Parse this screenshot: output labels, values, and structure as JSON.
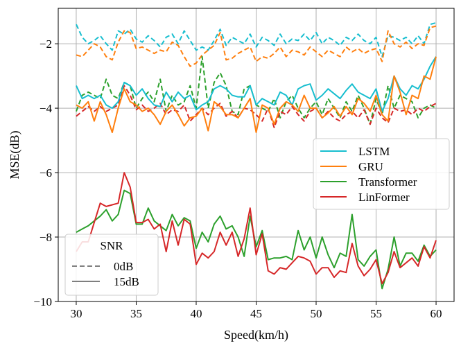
{
  "chart_data": {
    "type": "line",
    "title": "",
    "xlabel": "Speed(km/h)",
    "ylabel": "MSE(dB)",
    "xlim": [
      28.5,
      61.5
    ],
    "ylim": [
      -10,
      -0.9
    ],
    "xticks": [
      30,
      35,
      40,
      45,
      50,
      55,
      60
    ],
    "yticks": [
      -10,
      -8,
      -6,
      -4,
      -2
    ],
    "xtick_labels": [
      "30",
      "35",
      "40",
      "45",
      "50",
      "55",
      "60"
    ],
    "ytick_labels": [
      "−10",
      "−8",
      "−6",
      "−4",
      "−2"
    ],
    "grid": true,
    "x": [
      30,
      30.5,
      31,
      31.5,
      32,
      32.5,
      33,
      33.5,
      34,
      34.5,
      35,
      35.5,
      36,
      36.5,
      37,
      37.5,
      38,
      38.5,
      39,
      39.5,
      40,
      40.5,
      41,
      41.5,
      42,
      42.5,
      43,
      43.5,
      44,
      44.5,
      45,
      45.5,
      46,
      46.5,
      47,
      47.5,
      48,
      48.5,
      49,
      49.5,
      50,
      50.5,
      51,
      51.5,
      52,
      52.5,
      53,
      53.5,
      54,
      54.5,
      55,
      55.5,
      56,
      56.5,
      57,
      57.5,
      58,
      58.5,
      59,
      59.5,
      60
    ],
    "series": [
      {
        "name": "LSTM",
        "snr": "0dB",
        "style": "dashed",
        "color": "#17becf",
        "values": [
          -1.4,
          -1.8,
          -2.0,
          -1.9,
          -1.75,
          -2.0,
          -2.2,
          -1.6,
          -1.7,
          -1.55,
          -1.85,
          -1.95,
          -1.75,
          -1.9,
          -2.1,
          -1.8,
          -1.7,
          -2.0,
          -1.6,
          -1.9,
          -2.2,
          -2.1,
          -2.2,
          -1.9,
          -1.55,
          -2.05,
          -1.8,
          -1.9,
          -2.0,
          -1.7,
          -2.1,
          -1.8,
          -1.9,
          -2.05,
          -1.7,
          -2.0,
          -1.85,
          -1.9,
          -1.7,
          -1.9,
          -1.65,
          -2.0,
          -1.8,
          -1.9,
          -2.05,
          -1.8,
          -1.9,
          -1.7,
          -1.9,
          -2.0,
          -1.8,
          -2.4,
          -1.75,
          -1.8,
          -1.9,
          -1.8,
          -2.0,
          -1.75,
          -2.0,
          -1.4,
          -1.35
        ]
      },
      {
        "name": "GRU",
        "snr": "0dB",
        "style": "dashed",
        "color": "#ff7f0e",
        "values": [
          -2.35,
          -2.4,
          -2.2,
          -2.0,
          -2.1,
          -2.4,
          -2.5,
          -1.95,
          -1.6,
          -1.65,
          -2.15,
          -2.1,
          -2.2,
          -2.3,
          -2.2,
          -2.25,
          -1.95,
          -2.05,
          -2.4,
          -2.7,
          -2.6,
          -2.35,
          -2.2,
          -2.05,
          -1.65,
          -2.5,
          -2.45,
          -2.3,
          -2.2,
          -2.1,
          -2.55,
          -2.4,
          -2.45,
          -2.3,
          -2.1,
          -2.4,
          -2.2,
          -2.25,
          -2.35,
          -2.1,
          -2.25,
          -2.4,
          -2.2,
          -2.3,
          -2.4,
          -2.1,
          -2.25,
          -2.15,
          -2.3,
          -2.2,
          -2.15,
          -2.55,
          -1.6,
          -2.0,
          -2.1,
          -1.95,
          -2.15,
          -2.0,
          -2.05,
          -1.5,
          -1.45
        ]
      },
      {
        "name": "Transformer",
        "snr": "0dB",
        "style": "dashed",
        "color": "#2ca02c",
        "values": [
          -4.1,
          -3.6,
          -3.5,
          -3.6,
          -3.7,
          -3.1,
          -3.6,
          -3.7,
          -3.2,
          -3.3,
          -4.0,
          -3.7,
          -3.5,
          -3.8,
          -3.1,
          -4.1,
          -3.6,
          -3.9,
          -3.8,
          -3.3,
          -4.0,
          -2.4,
          -4.0,
          -3.2,
          -2.9,
          -3.3,
          -4.1,
          -4.2,
          -3.4,
          -3.3,
          -3.9,
          -4.0,
          -4.1,
          -3.7,
          -4.3,
          -3.8,
          -3.6,
          -4.0,
          -4.3,
          -4.0,
          -3.8,
          -4.2,
          -3.7,
          -4.0,
          -4.3,
          -3.8,
          -4.1,
          -3.6,
          -4.0,
          -4.5,
          -3.7,
          -4.2,
          -3.3,
          -4.0,
          -3.6,
          -3.7,
          -3.8,
          -4.3,
          -4.0,
          -3.9,
          -4.0
        ]
      },
      {
        "name": "LinFormer",
        "snr": "0dB",
        "style": "dashed",
        "color": "#d62728",
        "values": [
          -4.25,
          -4.1,
          -3.95,
          -4.1,
          -3.95,
          -4.1,
          -4.0,
          -3.9,
          -3.3,
          -3.6,
          -4.05,
          -3.9,
          -4.1,
          -4.0,
          -3.85,
          -4.2,
          -4.05,
          -4.1,
          -3.9,
          -4.4,
          -4.2,
          -4.0,
          -4.2,
          -4.0,
          -3.85,
          -4.25,
          -4.1,
          -4.3,
          -4.0,
          -4.05,
          -4.2,
          -4.4,
          -4.0,
          -4.6,
          -4.1,
          -4.2,
          -3.95,
          -4.2,
          -4.4,
          -4.1,
          -4.0,
          -4.3,
          -4.1,
          -4.3,
          -4.4,
          -4.2,
          -4.1,
          -4.3,
          -4.05,
          -4.5,
          -4.0,
          -4.3,
          -4.45,
          -4.0,
          -4.1,
          -4.05,
          -4.2,
          -4.0,
          -4.1,
          -3.95,
          -3.85
        ]
      },
      {
        "name": "LSTM",
        "snr": "15dB",
        "style": "solid",
        "color": "#17becf",
        "values": [
          -3.3,
          -3.7,
          -3.6,
          -3.7,
          -3.6,
          -3.9,
          -4.0,
          -3.8,
          -3.2,
          -3.3,
          -3.6,
          -3.4,
          -3.7,
          -3.9,
          -3.95,
          -3.5,
          -3.8,
          -3.5,
          -3.7,
          -3.6,
          -4.05,
          -3.9,
          -3.8,
          -3.4,
          -3.3,
          -3.4,
          -3.6,
          -3.65,
          -3.65,
          -3.3,
          -3.9,
          -3.7,
          -3.8,
          -3.9,
          -3.5,
          -3.6,
          -3.9,
          -3.4,
          -3.3,
          -3.25,
          -3.75,
          -3.6,
          -3.4,
          -3.55,
          -3.7,
          -3.45,
          -3.25,
          -3.5,
          -3.6,
          -3.7,
          -3.4,
          -4.1,
          -3.7,
          -3.0,
          -3.4,
          -3.6,
          -3.3,
          -3.4,
          -3.1,
          -2.7,
          -2.4
        ]
      },
      {
        "name": "GRU",
        "snr": "15dB",
        "style": "solid",
        "color": "#ff7f0e",
        "values": [
          -3.9,
          -4.0,
          -3.8,
          -4.4,
          -3.8,
          -4.2,
          -4.75,
          -4.0,
          -3.4,
          -3.8,
          -3.9,
          -4.1,
          -4.0,
          -4.2,
          -4.5,
          -4.1,
          -3.9,
          -4.2,
          -4.55,
          -4.3,
          -4.25,
          -4.0,
          -4.7,
          -3.8,
          -3.95,
          -4.2,
          -4.2,
          -4.3,
          -4.0,
          -3.7,
          -4.75,
          -3.9,
          -4.0,
          -4.5,
          -4.0,
          -3.8,
          -3.9,
          -4.1,
          -3.6,
          -4.0,
          -4.0,
          -4.3,
          -4.15,
          -3.95,
          -4.25,
          -3.95,
          -4.2,
          -3.7,
          -3.85,
          -4.1,
          -3.6,
          -4.2,
          -4.4,
          -3.0,
          -3.5,
          -4.2,
          -3.6,
          -3.7,
          -3.0,
          -3.1,
          -2.4
        ]
      },
      {
        "name": "Transformer",
        "snr": "15dB",
        "style": "solid",
        "color": "#2ca02c",
        "values": [
          -7.85,
          -7.75,
          -7.65,
          -7.5,
          -7.35,
          -7.15,
          -7.5,
          -7.3,
          -6.55,
          -6.65,
          -7.6,
          -7.6,
          -7.1,
          -7.5,
          -7.65,
          -7.8,
          -7.3,
          -7.65,
          -7.4,
          -7.5,
          -8.35,
          -7.85,
          -8.15,
          -7.6,
          -7.35,
          -7.75,
          -7.65,
          -8.0,
          -8.6,
          -7.35,
          -8.3,
          -7.8,
          -8.7,
          -8.65,
          -8.65,
          -8.6,
          -8.7,
          -7.8,
          -8.4,
          -8.0,
          -8.65,
          -8.0,
          -8.55,
          -8.95,
          -8.5,
          -8.6,
          -7.3,
          -8.7,
          -8.9,
          -8.6,
          -8.4,
          -9.6,
          -9.0,
          -8.0,
          -8.9,
          -8.5,
          -8.5,
          -8.75,
          -8.25,
          -8.6,
          -8.4
        ]
      },
      {
        "name": "LinFormer",
        "snr": "15dB",
        "style": "solid",
        "color": "#d62728",
        "values": [
          -8.45,
          -8.15,
          -8.15,
          -7.55,
          -6.95,
          -7.05,
          -7.0,
          -6.95,
          -6.0,
          -6.45,
          -7.55,
          -7.55,
          -7.45,
          -7.75,
          -7.6,
          -8.45,
          -7.5,
          -8.25,
          -7.45,
          -7.6,
          -8.85,
          -8.5,
          -8.65,
          -8.45,
          -7.85,
          -8.25,
          -7.85,
          -8.6,
          -8.05,
          -7.1,
          -8.55,
          -7.9,
          -9.05,
          -9.15,
          -8.95,
          -9.0,
          -8.8,
          -8.6,
          -8.65,
          -8.75,
          -9.15,
          -8.95,
          -8.95,
          -9.25,
          -9.05,
          -9.1,
          -8.2,
          -8.9,
          -9.2,
          -9.0,
          -8.7,
          -9.45,
          -9.1,
          -8.45,
          -8.95,
          -8.8,
          -8.65,
          -8.9,
          -8.3,
          -8.65,
          -8.1
        ]
      }
    ],
    "legend_models": {
      "placement": "center-right",
      "entries": [
        {
          "label": "LSTM",
          "color": "#17becf"
        },
        {
          "label": "GRU",
          "color": "#ff7f0e"
        },
        {
          "label": "Transformer",
          "color": "#2ca02c"
        },
        {
          "label": "LinFormer",
          "color": "#d62728"
        }
      ]
    },
    "legend_snr": {
      "placement": "lower-left",
      "title": "SNR",
      "entries": [
        {
          "label": "0dB",
          "style": "dashed",
          "color": "#7f7f7f"
        },
        {
          "label": "15dB",
          "style": "solid",
          "color": "#7f7f7f"
        }
      ]
    }
  }
}
